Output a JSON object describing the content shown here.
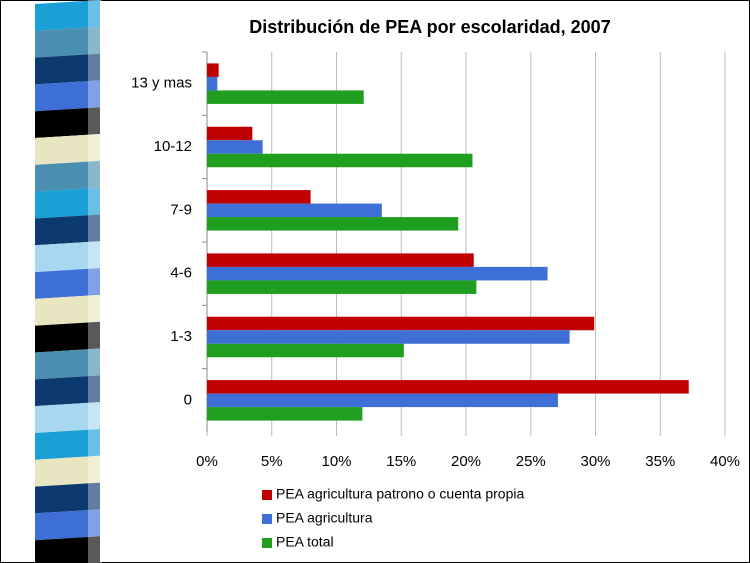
{
  "chart_data": {
    "type": "hbar",
    "title": "Distribución de PEA por escolaridad, 2007",
    "categories": [
      "13 y mas",
      "10-12",
      "7-9",
      "4-6",
      "1-3",
      "0"
    ],
    "series": [
      {
        "name": "PEA agricultura patrono o cuenta propia",
        "color": "#c00000",
        "values": [
          0.9,
          3.5,
          8.0,
          20.6,
          29.9,
          37.2
        ]
      },
      {
        "name": "PEA agricultura",
        "color": "#3d6fd6",
        "values": [
          0.8,
          4.3,
          13.5,
          26.3,
          28.0,
          27.1
        ]
      },
      {
        "name": "PEA total",
        "color": "#1f9e1f",
        "values": [
          12.1,
          20.5,
          19.4,
          20.8,
          15.2,
          12.0
        ]
      }
    ],
    "xlim": [
      0,
      40
    ],
    "xticks": [
      {
        "value": 0,
        "label": "0%"
      },
      {
        "value": 5,
        "label": "5%"
      },
      {
        "value": 10,
        "label": "10%"
      },
      {
        "value": 15,
        "label": "15%"
      },
      {
        "value": 20,
        "label": "20%"
      },
      {
        "value": 25,
        "label": "25%"
      },
      {
        "value": 30,
        "label": "30%"
      },
      {
        "value": 35,
        "label": "35%"
      },
      {
        "value": 40,
        "label": "40%"
      }
    ],
    "grid": true,
    "legend": "bottom"
  }
}
